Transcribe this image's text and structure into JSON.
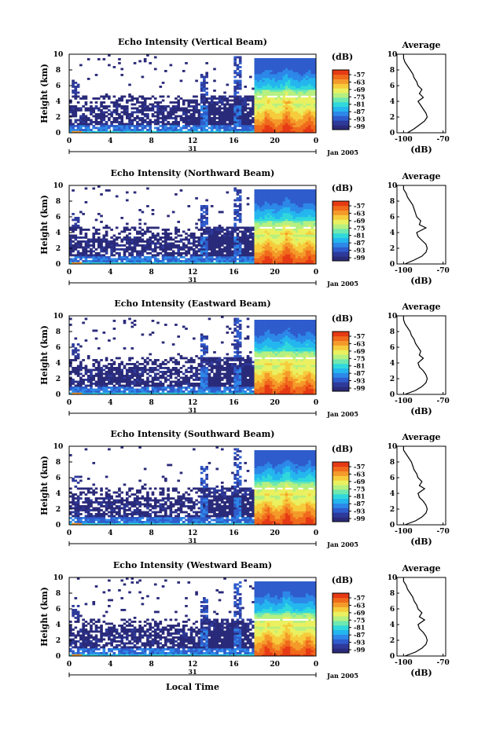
{
  "chart_data": {
    "type": "heatmap",
    "x_axis_label": "Local Time",
    "date_label": "Jan 2005",
    "day_label": "31",
    "x_ticks": [
      "0",
      "4",
      "8",
      "12",
      "16",
      "20",
      "0"
    ],
    "y_label": "Height (km)",
    "y_ticks": [
      "0",
      "2",
      "4",
      "6",
      "8",
      "10"
    ],
    "colorbar_unit": "(dB)",
    "colorbar_ticks": [
      "-57",
      "-63",
      "-69",
      "-75",
      "-81",
      "-87",
      "-93",
      "-99"
    ],
    "colors": [
      "#2a2a7a",
      "#2e3a9a",
      "#2f5ccc",
      "#2d88e8",
      "#24b6ee",
      "#30d8dc",
      "#6ee8b0",
      "#b6f080",
      "#eaf060",
      "#f6cc3c",
      "#f49a2a",
      "#f06a1c",
      "#e63a14"
    ],
    "avg_title": "Average",
    "avg_xlabel": "(dB)",
    "avg_xticks": [
      "-100",
      "-70"
    ],
    "panels": [
      {
        "title": "Echo Intensity (Vertical Beam)",
        "avg_profile": [
          [
            -97,
            0
          ],
          [
            -92,
            0.5
          ],
          [
            -88,
            1.0
          ],
          [
            -84,
            1.5
          ],
          [
            -82,
            2.0
          ],
          [
            -83,
            2.5
          ],
          [
            -85,
            3.0
          ],
          [
            -87,
            3.5
          ],
          [
            -89,
            4.0
          ],
          [
            -85,
            4.5
          ],
          [
            -88,
            5.0
          ],
          [
            -86,
            5.5
          ],
          [
            -89,
            6.0
          ],
          [
            -90,
            6.5
          ],
          [
            -92,
            7.0
          ],
          [
            -93,
            7.5
          ],
          [
            -95,
            8.0
          ],
          [
            -97,
            8.5
          ],
          [
            -99,
            9.0
          ],
          [
            -100,
            9.5
          ],
          [
            -100,
            10
          ]
        ]
      },
      {
        "title": "Echo Intensity (Northward Beam)",
        "avg_profile": [
          [
            -99,
            0
          ],
          [
            -92,
            0.5
          ],
          [
            -86,
            1.0
          ],
          [
            -83,
            1.5
          ],
          [
            -82,
            2.0
          ],
          [
            -83,
            2.5
          ],
          [
            -86,
            3.0
          ],
          [
            -89,
            3.5
          ],
          [
            -90,
            4.0
          ],
          [
            -83,
            4.6
          ],
          [
            -88,
            5.0
          ],
          [
            -87,
            5.5
          ],
          [
            -90,
            6.0
          ],
          [
            -91,
            6.5
          ],
          [
            -92,
            7.0
          ],
          [
            -93,
            7.5
          ],
          [
            -95,
            8.0
          ],
          [
            -97,
            8.5
          ],
          [
            -98,
            9.0
          ],
          [
            -100,
            9.5
          ],
          [
            -100,
            10
          ]
        ]
      },
      {
        "title": "Echo Intensity (Eastward Beam)",
        "avg_profile": [
          [
            -99,
            0
          ],
          [
            -91,
            0.5
          ],
          [
            -86,
            1.0
          ],
          [
            -83,
            1.5
          ],
          [
            -82,
            2.0
          ],
          [
            -83,
            2.5
          ],
          [
            -85,
            3.0
          ],
          [
            -88,
            3.5
          ],
          [
            -89,
            4.0
          ],
          [
            -85,
            4.6
          ],
          [
            -88,
            5.0
          ],
          [
            -87,
            5.5
          ],
          [
            -89,
            6.0
          ],
          [
            -91,
            6.5
          ],
          [
            -92,
            7.0
          ],
          [
            -94,
            7.5
          ],
          [
            -95,
            8.0
          ],
          [
            -97,
            8.5
          ],
          [
            -99,
            9.0
          ],
          [
            -100,
            9.5
          ],
          [
            -100,
            10
          ]
        ]
      },
      {
        "title": "Echo Intensity (Southward Beam)",
        "avg_profile": [
          [
            -99,
            0
          ],
          [
            -91,
            0.5
          ],
          [
            -86,
            1.0
          ],
          [
            -83,
            1.5
          ],
          [
            -82,
            2.0
          ],
          [
            -83,
            2.5
          ],
          [
            -85,
            3.0
          ],
          [
            -88,
            3.5
          ],
          [
            -89,
            4.0
          ],
          [
            -84,
            4.6
          ],
          [
            -88,
            5.0
          ],
          [
            -86,
            5.5
          ],
          [
            -89,
            6.0
          ],
          [
            -90,
            6.5
          ],
          [
            -92,
            7.0
          ],
          [
            -93,
            7.5
          ],
          [
            -94,
            8.0
          ],
          [
            -96,
            8.5
          ],
          [
            -98,
            9.0
          ],
          [
            -100,
            9.5
          ],
          [
            -100,
            10
          ]
        ]
      },
      {
        "title": "Echo Intensity (Westward Beam)",
        "avg_profile": [
          [
            -99,
            0
          ],
          [
            -91,
            0.5
          ],
          [
            -86,
            1.0
          ],
          [
            -83,
            1.5
          ],
          [
            -82,
            2.0
          ],
          [
            -83,
            2.5
          ],
          [
            -85,
            3.0
          ],
          [
            -88,
            3.5
          ],
          [
            -89,
            4.0
          ],
          [
            -84,
            4.6
          ],
          [
            -88,
            5.0
          ],
          [
            -86,
            5.5
          ],
          [
            -89,
            6.0
          ],
          [
            -90,
            6.5
          ],
          [
            -92,
            7.0
          ],
          [
            -93,
            7.5
          ],
          [
            -95,
            8.0
          ],
          [
            -97,
            8.5
          ],
          [
            -98,
            9.0
          ],
          [
            -100,
            9.5
          ],
          [
            -100,
            10
          ]
        ]
      }
    ]
  }
}
